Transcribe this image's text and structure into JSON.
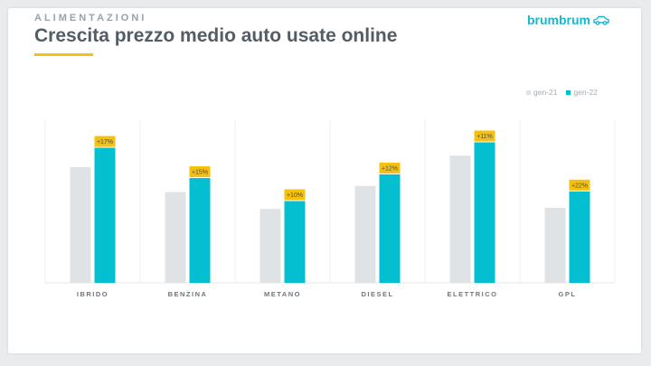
{
  "header": {
    "kicker": "ALIMENTAZIONI",
    "title": "Crescita prezzo medio auto usate online",
    "brand": "brumbrum"
  },
  "colors": {
    "series_2021": "#dfe3e6",
    "series_2022": "#03bfcf",
    "label_bg": "#f6c10e",
    "accent": "#f3c21a"
  },
  "chart_data": {
    "type": "bar",
    "categories": [
      "IBRIDO",
      "BENZINA",
      "METANO",
      "DIESEL",
      "ELETTRICO",
      "GPL"
    ],
    "series": [
      {
        "name": "gen-21",
        "values": [
          19100,
          15000,
          12200,
          16000,
          21000,
          12400
        ]
      },
      {
        "name": "gen-22",
        "values": [
          22300,
          17300,
          13500,
          17900,
          23200,
          15100
        ]
      }
    ],
    "annotations": [
      "+17%",
      "+15%",
      "+10%",
      "+12%",
      "+11%",
      "+22%"
    ],
    "legend_position": "top-right",
    "ylim": [
      0,
      27000
    ],
    "y_axis_visible": false,
    "grid": false
  }
}
